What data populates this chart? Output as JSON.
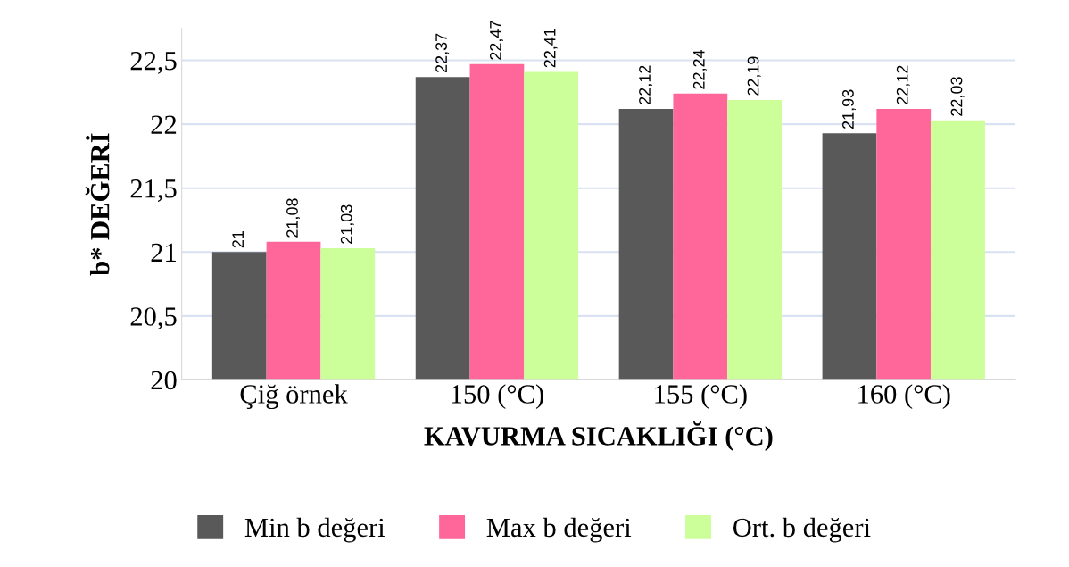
{
  "chart_data": {
    "type": "bar",
    "xlabel": "KAVURMA SICAKLIĞI (°C)",
    "ylabel": "b* DEĞERİ",
    "categories": [
      "Çiğ örnek",
      "150 (°C)",
      "155 (°C)",
      "160 (°C)"
    ],
    "series": [
      {
        "name": "Min b değeri",
        "color": "#595959",
        "values": [
          21,
          22.37,
          22.12,
          21.93
        ],
        "value_labels": [
          "21",
          "22,37",
          "22,12",
          "21,93"
        ]
      },
      {
        "name": "Max b değeri",
        "color": "#ff6699",
        "values": [
          21.08,
          22.47,
          22.24,
          22.12
        ],
        "value_labels": [
          "21,08",
          "22,47",
          "22,24",
          "22,12"
        ]
      },
      {
        "name": "Ort. b değeri",
        "color": "#ccff99",
        "values": [
          21.03,
          22.41,
          22.19,
          22.03
        ],
        "value_labels": [
          "21,03",
          "22,41",
          "22,19",
          "22,03"
        ]
      }
    ],
    "ylim": [
      20,
      22.75
    ],
    "yticks": [
      20,
      {
        "value": 20.5,
        "label": "20,5"
      },
      21,
      {
        "value": 21.5,
        "label": "21,5"
      },
      22,
      {
        "value": 22.5,
        "label": "22,5"
      }
    ],
    "grid": "y",
    "legend": "bottom"
  }
}
